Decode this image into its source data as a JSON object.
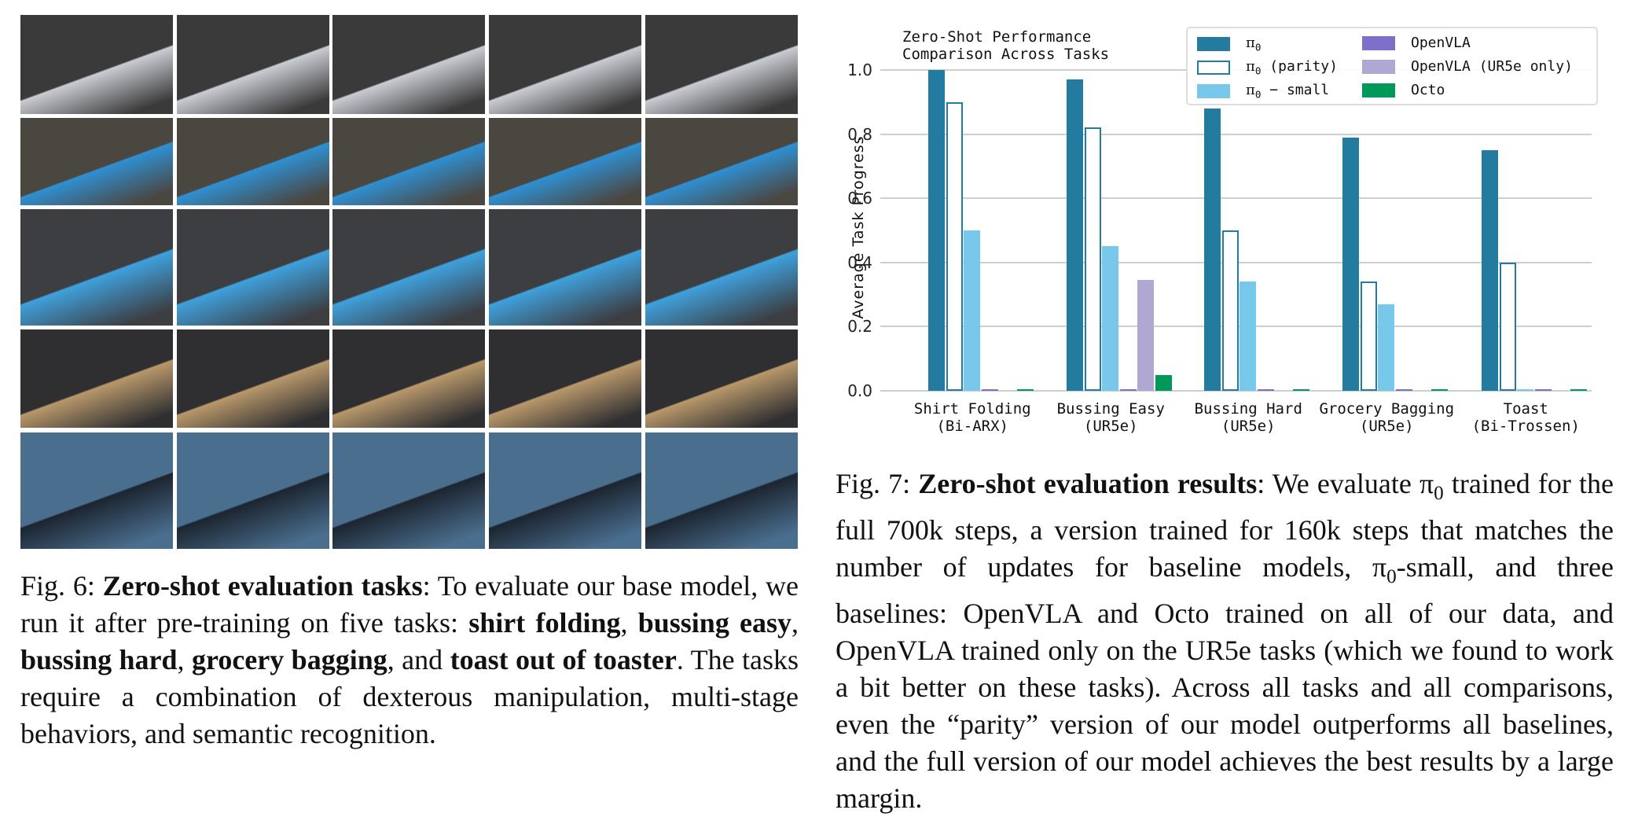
{
  "figure6": {
    "grid": {
      "rows": [
        {
          "task": "shirt folding",
          "scene_color": "#3a3a3a",
          "accent": "#c9cbd2"
        },
        {
          "task": "bussing easy",
          "scene_color": "#4a4640",
          "accent": "#2f8fd1"
        },
        {
          "task": "bussing hard",
          "scene_color": "#3c3e42",
          "accent": "#3ea0dc"
        },
        {
          "task": "grocery bagging",
          "scene_color": "#2f2f31",
          "accent": "#b8976a"
        },
        {
          "task": "toast out of toaster",
          "scene_color": "#4a6e8e",
          "accent": "#1c2530"
        }
      ],
      "columns": 5
    },
    "caption": {
      "prefix": "Fig. 6: ",
      "title": "Zero-shot evaluation tasks",
      "t1": ": To evaluate our base model, we run it after pre-training on five tasks: ",
      "b1": "shirt folding",
      "t2": ", ",
      "b2": "bussing easy",
      "t3": ", ",
      "b3": "bussing hard",
      "t4": ", ",
      "b4": "grocery bagging",
      "t5": ", and ",
      "b5": "toast out of toaster",
      "t6": ". The tasks require a combination of dexterous manipulation, multi-stage behaviors, and semantic recognition."
    }
  },
  "figure7": {
    "caption": {
      "prefix": "Fig. 7: ",
      "title": "Zero-shot evaluation results",
      "t1": ": We evaluate π",
      "s1": "0",
      "t2": " trained for the full 700k steps, a version trained for 160k steps that matches the number of updates for baseline models, π",
      "s2": "0",
      "t3": "-small, and three baselines: OpenVLA and Octo trained on all of our data, and OpenVLA trained only on the UR5e tasks (which we found to work a bit better on these tasks). Across all tasks and all comparisons, even the “parity” version of our model outperforms all baselines, and the full version of our model achieves the best results by a large margin."
    }
  },
  "chart_data": {
    "type": "bar",
    "title": "Zero-Shot Performance\nComparison Across Tasks",
    "title_line1": "Zero-Shot Performance",
    "title_line2": "Comparison Across Tasks",
    "xlabel": "",
    "ylabel": "Average Task Progress",
    "ylim": [
      0,
      1.0
    ],
    "yticks": [
      "0.0",
      "0.2",
      "0.4",
      "0.6",
      "0.8",
      "1.0"
    ],
    "grid": true,
    "legend_position": "upper right",
    "categories": [
      "Shirt Folding\n(Bi-ARX)",
      "Bussing Easy\n(UR5e)",
      "Bussing Hard\n(UR5e)",
      "Grocery Bagging\n(UR5e)",
      "Toast\n(Bi-Trossen)"
    ],
    "category_labels": [
      {
        "line1": "Shirt Folding",
        "line2": "(Bi-ARX)"
      },
      {
        "line1": "Bussing Easy",
        "line2": "(UR5e)"
      },
      {
        "line1": "Bussing Hard",
        "line2": "(UR5e)"
      },
      {
        "line1": "Grocery Bagging",
        "line2": "(UR5e)"
      },
      {
        "line1": "Toast",
        "line2": "(Bi-Trossen)"
      }
    ],
    "series": [
      {
        "name": "π0",
        "label_main": "π",
        "label_sub": "0",
        "label_rest": "",
        "color": "#247ba0",
        "style": "filled",
        "values": [
          1.0,
          0.97,
          0.88,
          0.79,
          0.75
        ]
      },
      {
        "name": "π0 (parity)",
        "label_main": "π",
        "label_sub": "0",
        "label_rest": " (parity)",
        "color": "#247ba0",
        "style": "outline",
        "values": [
          0.9,
          0.82,
          0.5,
          0.34,
          0.4
        ]
      },
      {
        "name": "π0 - small",
        "label_main": "π",
        "label_sub": "0",
        "label_rest": " − small",
        "color": "#77c8ea",
        "style": "filled",
        "values": [
          0.5,
          0.45,
          0.34,
          0.27,
          0.0
        ]
      },
      {
        "name": "OpenVLA",
        "label_main": "OpenVLA",
        "label_sub": "",
        "label_rest": "",
        "color": "#7d6fcb",
        "style": "filled",
        "values": [
          0.0,
          0.0,
          0.0,
          0.0,
          0.0
        ]
      },
      {
        "name": "OpenVLA (UR5e only)",
        "label_main": "OpenVLA (UR5e only)",
        "label_sub": "",
        "label_rest": "",
        "color": "#b0a8d2",
        "style": "filled",
        "values": [
          null,
          0.345,
          null,
          null,
          null
        ]
      },
      {
        "name": "Octo",
        "label_main": "Octo",
        "label_sub": "",
        "label_rest": "",
        "color": "#00995a",
        "style": "filled",
        "values": [
          0.0,
          0.05,
          0.0,
          0.0,
          0.0
        ]
      }
    ]
  }
}
